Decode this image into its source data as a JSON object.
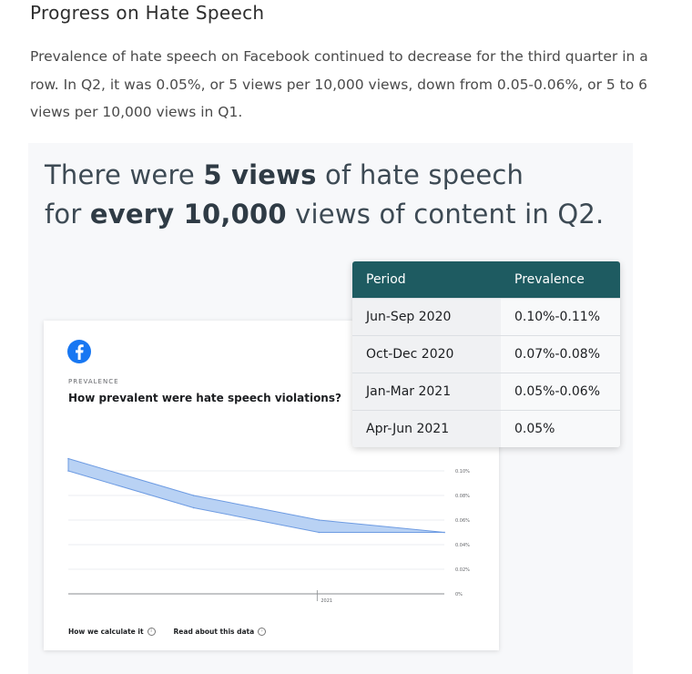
{
  "article": {
    "heading": "Progress on Hate Speech",
    "intro": "Prevalence of hate speech on Facebook continued to decrease for the third quarter in a row. In Q2, it was 0.05%, or 5 views per 10,000 views, down from 0.05-0.06%, or 5 to 6 views per 10,000 views in Q1."
  },
  "figure": {
    "headline_parts": [
      {
        "text": "There were ",
        "bold": false
      },
      {
        "text": "5 views",
        "bold": true
      },
      {
        "text": " of hate speech",
        "bold": false
      },
      {
        "text": "\n",
        "bold": false
      },
      {
        "text": "for ",
        "bold": false
      },
      {
        "text": "every 10,000",
        "bold": true
      },
      {
        "text": " views of content in Q2.",
        "bold": false
      }
    ],
    "card": {
      "icon": "facebook-icon",
      "label": "PREVALENCE",
      "question": "How prevalent were hate speech violations?",
      "links": [
        {
          "label": "How we calculate it",
          "icon": "info-icon"
        },
        {
          "label": "Read about this data",
          "icon": "chevron-right-icon"
        }
      ],
      "colors": {
        "band_fill": "#b9d2f4",
        "band_stroke": "#6d9be2",
        "facebook_blue": "#1877f2"
      }
    },
    "table": {
      "header_color": "#1e5b61",
      "columns": [
        "Period",
        "Prevalence"
      ],
      "rows": [
        [
          "Jun-Sep 2020",
          "0.10%-0.11%"
        ],
        [
          "Oct-Dec 2020",
          "0.07%-0.08%"
        ],
        [
          "Jan-Mar 2021",
          "0.05%-0.06%"
        ],
        [
          "Apr-Jun 2021",
          "0.05%"
        ]
      ]
    }
  },
  "chart_data": {
    "type": "area",
    "title": "How prevalent were hate speech violations?",
    "ylabel": "",
    "xlabel": "",
    "ylim": [
      0,
      0.1
    ],
    "y_ticks": [
      "0.10%",
      "0.08%",
      "0.06%",
      "0.04%",
      "0.02%",
      "0%"
    ],
    "x_tick_labels": [
      "2021"
    ],
    "x": [
      "Q3 2020",
      "Q4 2020",
      "Q1 2021",
      "Q2 2021"
    ],
    "series": [
      {
        "low": [
          0.1,
          0.07,
          0.05,
          0.05
        ],
        "high": [
          0.11,
          0.08,
          0.06,
          0.05
        ]
      }
    ],
    "grid": true,
    "legend": "none"
  }
}
